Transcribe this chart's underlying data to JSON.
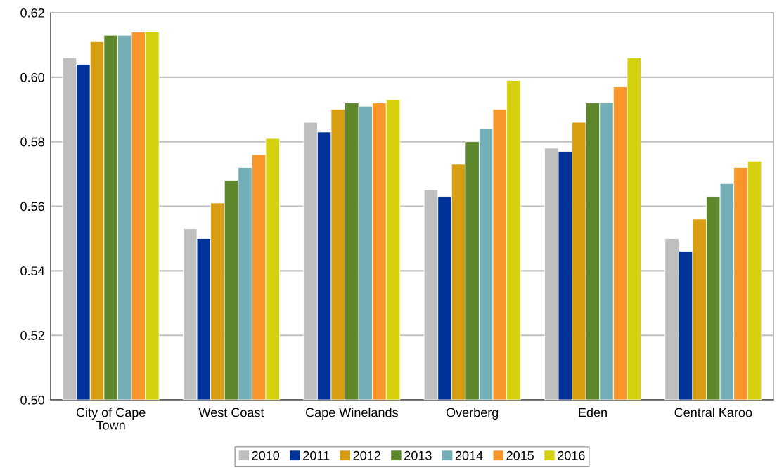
{
  "chart_data": {
    "type": "bar",
    "categories": [
      "City of Cape Town",
      "West Coast",
      "Cape Winelands",
      "Overberg",
      "Eden",
      "Central Karoo"
    ],
    "series": [
      {
        "name": "2010",
        "color": "#bfbfbf",
        "values": [
          0.606,
          0.553,
          0.586,
          0.565,
          0.578,
          0.55
        ]
      },
      {
        "name": "2011",
        "color": "#003399",
        "values": [
          0.604,
          0.55,
          0.583,
          0.563,
          0.577,
          0.546
        ]
      },
      {
        "name": "2012",
        "color": "#d69e10",
        "values": [
          0.611,
          0.561,
          0.59,
          0.573,
          0.586,
          0.556
        ]
      },
      {
        "name": "2013",
        "color": "#5e862a",
        "values": [
          0.613,
          0.568,
          0.592,
          0.58,
          0.592,
          0.563
        ]
      },
      {
        "name": "2014",
        "color": "#74afb7",
        "values": [
          0.613,
          0.572,
          0.591,
          0.584,
          0.592,
          0.567
        ]
      },
      {
        "name": "2015",
        "color": "#f9962a",
        "values": [
          0.614,
          0.576,
          0.592,
          0.59,
          0.597,
          0.572
        ]
      },
      {
        "name": "2016",
        "color": "#d6d10e",
        "values": [
          0.614,
          0.581,
          0.593,
          0.599,
          0.606,
          0.574
        ]
      }
    ],
    "ylim": [
      0.5,
      0.62
    ],
    "yticks": [
      {
        "value": 0.5,
        "label": "0.50"
      },
      {
        "value": 0.52,
        "label": "0.52"
      },
      {
        "value": 0.54,
        "label": "0.54"
      },
      {
        "value": 0.56,
        "label": "0.56"
      },
      {
        "value": 0.58,
        "label": "0.58"
      },
      {
        "value": 0.6,
        "label": "0.60"
      },
      {
        "value": 0.62,
        "label": "0.62"
      }
    ],
    "grid": "y",
    "legend": "bottom"
  }
}
